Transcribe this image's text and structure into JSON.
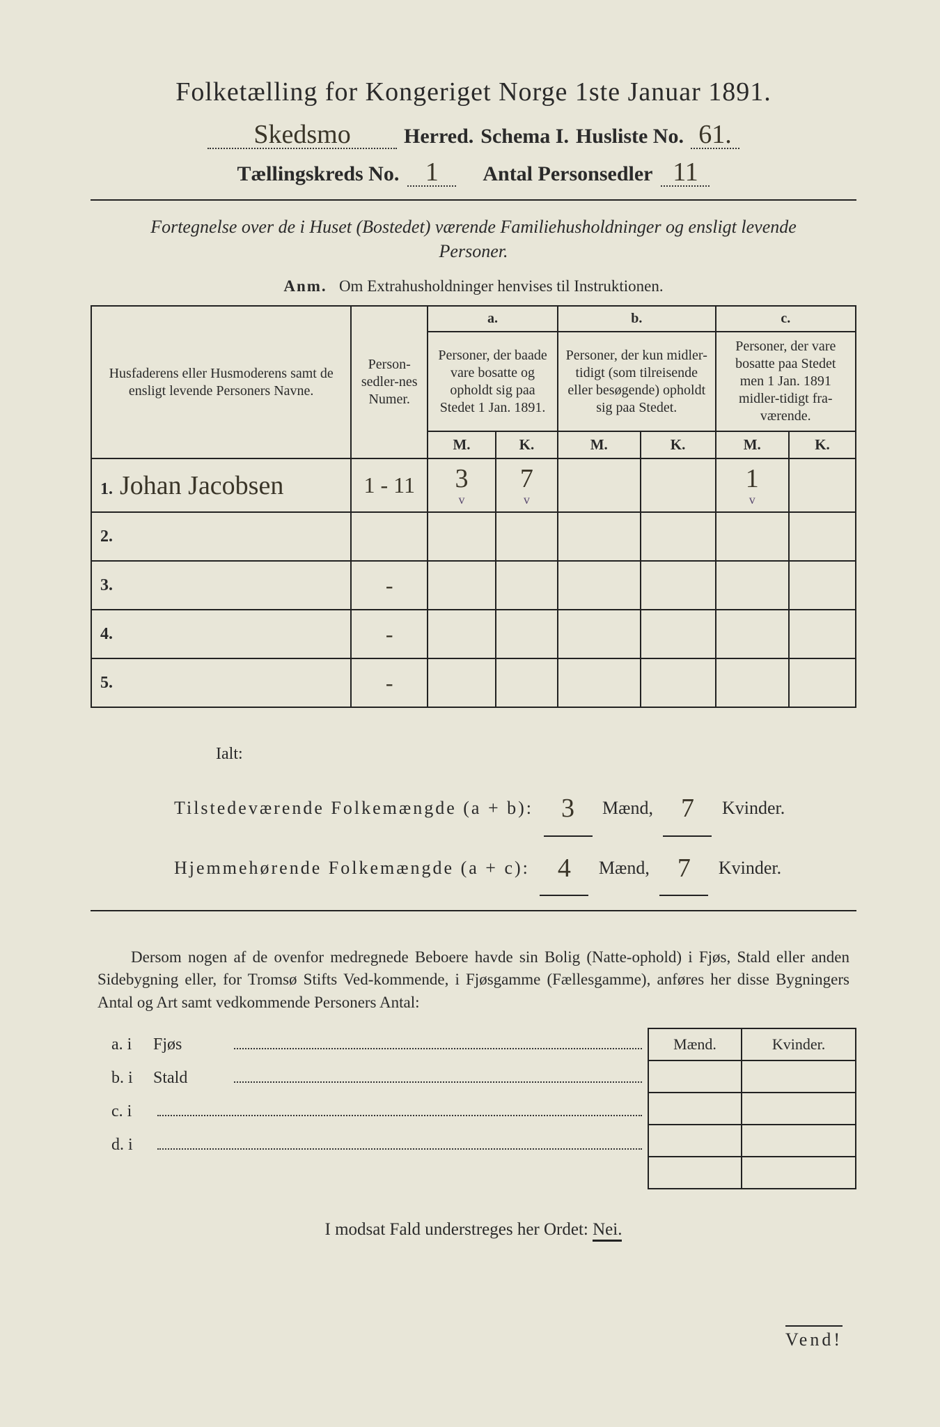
{
  "title": "Folketælling for Kongeriget Norge 1ste Januar 1891.",
  "header": {
    "herred_value": "Skedsmo",
    "herred_label": "Herred.",
    "schema_label": "Schema I.",
    "husliste_label": "Husliste No.",
    "husliste_value": "61.",
    "kreds_label": "Tællingskreds No.",
    "kreds_value": "1",
    "antal_label": "Antal Personsedler",
    "antal_value": "11"
  },
  "fortegnelse": "Fortegnelse over de i Huset (Bostedet) værende Familiehusholdninger og ensligt levende Personer.",
  "anm_label": "Anm.",
  "anm_text": "Om Extrahusholdninger henvises til Instruktionen.",
  "table": {
    "col_name": "Husfaderens eller Husmoderens samt de ensligt levende Personers Navne.",
    "col_numer": "Person-sedler-nes Numer.",
    "col_a_label": "a.",
    "col_a": "Personer, der baade vare bosatte og opholdt sig paa Stedet 1 Jan. 1891.",
    "col_b_label": "b.",
    "col_b": "Personer, der kun midler-tidigt (som tilreisende eller besøgende) opholdt sig paa Stedet.",
    "col_c_label": "c.",
    "col_c": "Personer, der vare bosatte paa Stedet men 1 Jan. 1891 midler-tidigt fra-værende.",
    "mk_m": "M.",
    "mk_k": "K.",
    "rows": [
      {
        "num": "1.",
        "name": "Johan Jacobsen",
        "numer": "1 - 11",
        "a_m": "3",
        "a_k": "7",
        "b_m": "",
        "b_k": "",
        "c_m": "1",
        "c_k": "",
        "tick": "v"
      },
      {
        "num": "2.",
        "name": "",
        "numer": "",
        "a_m": "",
        "a_k": "",
        "b_m": "",
        "b_k": "",
        "c_m": "",
        "c_k": ""
      },
      {
        "num": "3.",
        "name": "",
        "numer": "-",
        "a_m": "",
        "a_k": "",
        "b_m": "",
        "b_k": "",
        "c_m": "",
        "c_k": ""
      },
      {
        "num": "4.",
        "name": "",
        "numer": "-",
        "a_m": "",
        "a_k": "",
        "b_m": "",
        "b_k": "",
        "c_m": "",
        "c_k": ""
      },
      {
        "num": "5.",
        "name": "",
        "numer": "-",
        "a_m": "",
        "a_k": "",
        "b_m": "",
        "b_k": "",
        "c_m": "",
        "c_k": ""
      }
    ]
  },
  "ialt": {
    "label": "Ialt:",
    "line1_a": "Tilstedeværende Folkemængde (a + b):",
    "line1_m": "3",
    "line1_k": "7",
    "line2_a": "Hjemmehørende Folkemængde (a + c):",
    "line2_m": "4",
    "line2_k": "7",
    "maend": "Mænd,",
    "kvinder": "Kvinder."
  },
  "dersom": "Dersom nogen af de ovenfor medregnede Beboere havde sin Bolig (Natte-ophold) i Fjøs, Stald eller anden Sidebygning eller, for Tromsø Stifts Ved-kommende, i Fjøsgamme (Fællesgamme), anføres her disse Bygningers Antal og Art samt vedkommende Personers Antal:",
  "side": {
    "a": "a.  i",
    "b": "b.  i",
    "c": "c.  i",
    "d": "d.  i",
    "fjos": "Fjøs",
    "stald": "Stald",
    "maend": "Mænd.",
    "kvinder": "Kvinder."
  },
  "modsat": "I modsat Fald understreges her Ordet:",
  "nei": "Nei.",
  "vend": "Vend!",
  "colors": {
    "paper": "#e8e6d8",
    "ink": "#2a2a2a",
    "handwriting": "#3a3528"
  }
}
